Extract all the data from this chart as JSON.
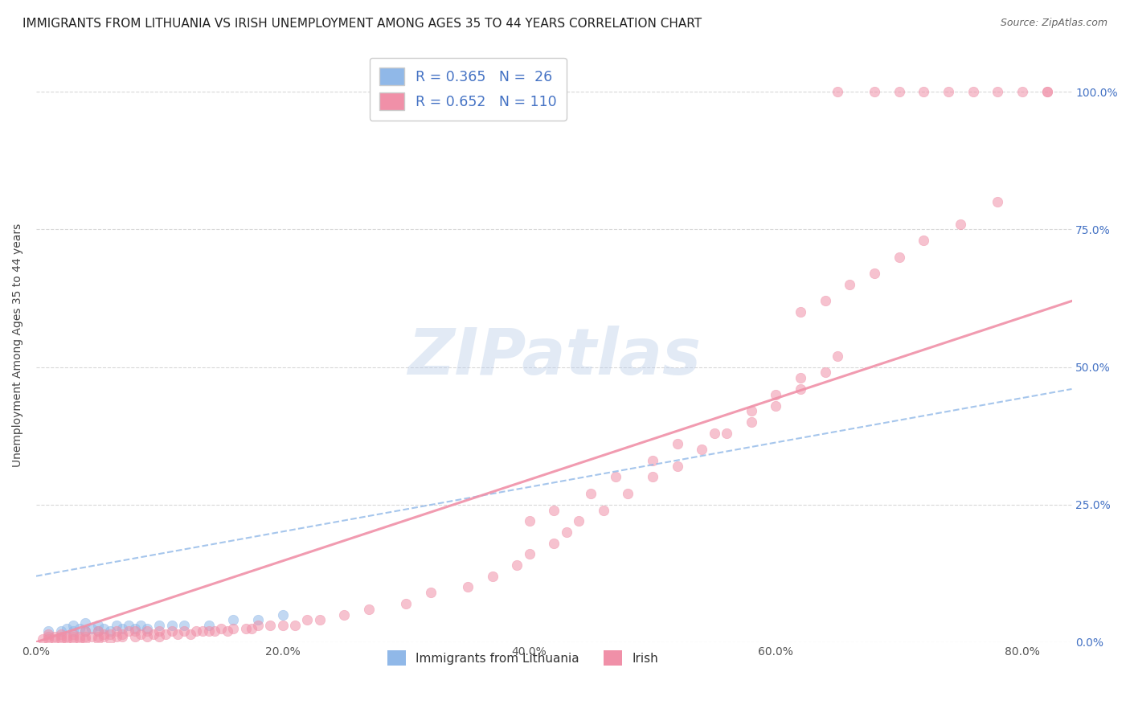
{
  "title": "IMMIGRANTS FROM LITHUANIA VS IRISH UNEMPLOYMENT AMONG AGES 35 TO 44 YEARS CORRELATION CHART",
  "source": "Source: ZipAtlas.com",
  "ylabel": "Unemployment Among Ages 35 to 44 years",
  "x_tick_labels": [
    "0.0%",
    "20.0%",
    "40.0%",
    "60.0%",
    "80.0%"
  ],
  "y_tick_labels_right": [
    "100.0%",
    "75.0%",
    "50.0%",
    "25.0%",
    "0.0%"
  ],
  "xlim": [
    0.0,
    0.84
  ],
  "ylim": [
    0.0,
    1.08
  ],
  "legend_entries": [
    {
      "label": "R = 0.365   N =  26",
      "color": "#a8c8f0"
    },
    {
      "label": "R = 0.652   N = 110",
      "color": "#f4b0c8"
    }
  ],
  "legend_bottom": [
    {
      "label": "Immigrants from Lithuania",
      "color": "#a8c8f0"
    },
    {
      "label": "Irish",
      "color": "#f4b0c8"
    }
  ],
  "blue_scatter_x": [
    0.01,
    0.02,
    0.025,
    0.03,
    0.03,
    0.035,
    0.04,
    0.04,
    0.045,
    0.05,
    0.05,
    0.055,
    0.06,
    0.065,
    0.07,
    0.075,
    0.08,
    0.085,
    0.09,
    0.1,
    0.11,
    0.12,
    0.14,
    0.16,
    0.18,
    0.2
  ],
  "blue_scatter_y": [
    0.02,
    0.02,
    0.025,
    0.02,
    0.03,
    0.025,
    0.02,
    0.035,
    0.025,
    0.02,
    0.03,
    0.025,
    0.02,
    0.03,
    0.025,
    0.03,
    0.025,
    0.03,
    0.025,
    0.03,
    0.03,
    0.03,
    0.03,
    0.04,
    0.04,
    0.05
  ],
  "pink_scatter_x": [
    0.005,
    0.01,
    0.01,
    0.01,
    0.015,
    0.015,
    0.02,
    0.02,
    0.02,
    0.025,
    0.025,
    0.03,
    0.03,
    0.03,
    0.035,
    0.035,
    0.04,
    0.04,
    0.04,
    0.045,
    0.05,
    0.05,
    0.05,
    0.055,
    0.055,
    0.06,
    0.06,
    0.065,
    0.065,
    0.07,
    0.07,
    0.075,
    0.08,
    0.08,
    0.085,
    0.09,
    0.09,
    0.095,
    0.1,
    0.1,
    0.105,
    0.11,
    0.115,
    0.12,
    0.125,
    0.13,
    0.135,
    0.14,
    0.145,
    0.15,
    0.155,
    0.16,
    0.17,
    0.175,
    0.18,
    0.19,
    0.2,
    0.21,
    0.22,
    0.23,
    0.25,
    0.27,
    0.3,
    0.32,
    0.35,
    0.37,
    0.39,
    0.4,
    0.42,
    0.43,
    0.44,
    0.46,
    0.48,
    0.5,
    0.52,
    0.54,
    0.56,
    0.58,
    0.6,
    0.62,
    0.64,
    0.4,
    0.42,
    0.45,
    0.47,
    0.5,
    0.52,
    0.55,
    0.58,
    0.6,
    0.62,
    0.65,
    0.62,
    0.64,
    0.66,
    0.68,
    0.7,
    0.72,
    0.75,
    0.78,
    0.65,
    0.68,
    0.7,
    0.72,
    0.74,
    0.76,
    0.78,
    0.8,
    0.82,
    0.82
  ],
  "pink_scatter_y": [
    0.005,
    0.005,
    0.01,
    0.015,
    0.005,
    0.01,
    0.005,
    0.01,
    0.015,
    0.005,
    0.01,
    0.005,
    0.01,
    0.015,
    0.005,
    0.01,
    0.005,
    0.01,
    0.02,
    0.01,
    0.005,
    0.01,
    0.02,
    0.01,
    0.015,
    0.005,
    0.015,
    0.01,
    0.02,
    0.01,
    0.015,
    0.02,
    0.01,
    0.02,
    0.015,
    0.01,
    0.02,
    0.015,
    0.01,
    0.02,
    0.015,
    0.02,
    0.015,
    0.02,
    0.015,
    0.02,
    0.02,
    0.02,
    0.02,
    0.025,
    0.02,
    0.025,
    0.025,
    0.025,
    0.03,
    0.03,
    0.03,
    0.03,
    0.04,
    0.04,
    0.05,
    0.06,
    0.07,
    0.09,
    0.1,
    0.12,
    0.14,
    0.16,
    0.18,
    0.2,
    0.22,
    0.24,
    0.27,
    0.3,
    0.32,
    0.35,
    0.38,
    0.4,
    0.43,
    0.46,
    0.49,
    0.22,
    0.24,
    0.27,
    0.3,
    0.33,
    0.36,
    0.38,
    0.42,
    0.45,
    0.48,
    0.52,
    0.6,
    0.62,
    0.65,
    0.67,
    0.7,
    0.73,
    0.76,
    0.8,
    1.0,
    1.0,
    1.0,
    1.0,
    1.0,
    1.0,
    1.0,
    1.0,
    1.0,
    1.0
  ],
  "blue_line_x": [
    0.0,
    0.84
  ],
  "blue_line_y": [
    0.12,
    0.46
  ],
  "pink_line_x": [
    0.0,
    0.84
  ],
  "pink_line_y": [
    0.0,
    0.62
  ],
  "scatter_size": 80,
  "scatter_alpha": 0.55,
  "blue_color": "#90b8e8",
  "pink_color": "#f090a8",
  "bg_color": "#ffffff",
  "grid_color": "#d8d8d8",
  "watermark": "ZIPatlas",
  "title_fontsize": 11,
  "source_fontsize": 9,
  "ylabel_fontsize": 10,
  "tick_fontsize": 10
}
